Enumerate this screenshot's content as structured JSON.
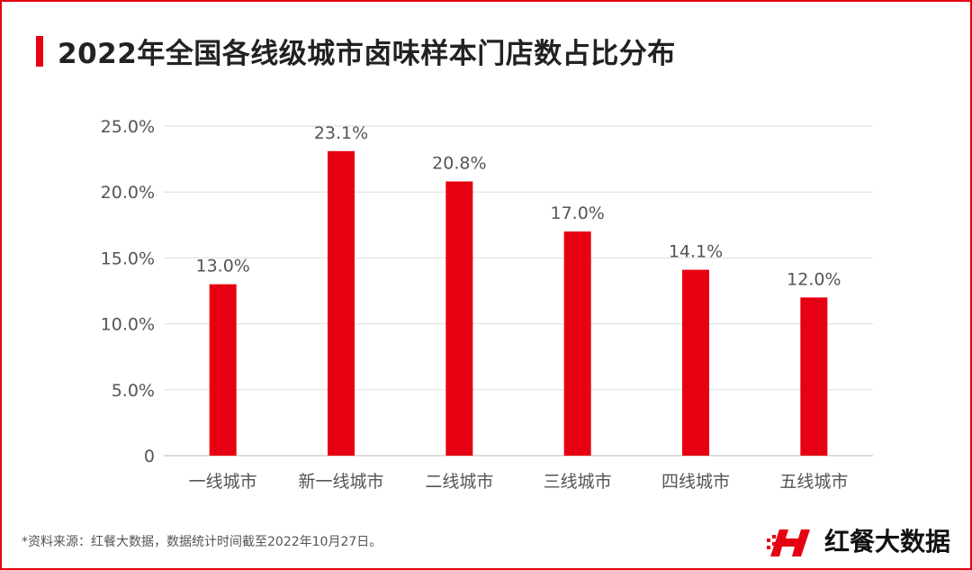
{
  "header": {
    "title": "2022年全国各线级城市卤味样本门店数占比分布"
  },
  "chart_data": {
    "type": "bar",
    "categories": [
      "一线城市",
      "新一线城市",
      "二线城市",
      "三线城市",
      "四线城市",
      "五线城市"
    ],
    "values": [
      13.0,
      23.1,
      20.8,
      17.0,
      14.1,
      12.0
    ],
    "value_labels": [
      "13.0%",
      "23.1%",
      "20.8%",
      "17.0%",
      "14.1%",
      "12.0%"
    ],
    "y_ticks": [
      0,
      5,
      10,
      15,
      20,
      25
    ],
    "y_tick_labels": [
      "0",
      "5.0%",
      "10.0%",
      "15.0%",
      "20.0%",
      "25.0%"
    ],
    "ylim": [
      0,
      25
    ],
    "grid": true,
    "legend": "none",
    "bar_color": "#e60012"
  },
  "footer": {
    "note": "*资料来源：红餐大数据，数据统计时间截至2022年10月27日。",
    "brand": "红餐大数据"
  },
  "colors": {
    "accent": "#e60012",
    "grid": "#dddddd",
    "tick_text": "#555555",
    "title_text": "#222222"
  }
}
